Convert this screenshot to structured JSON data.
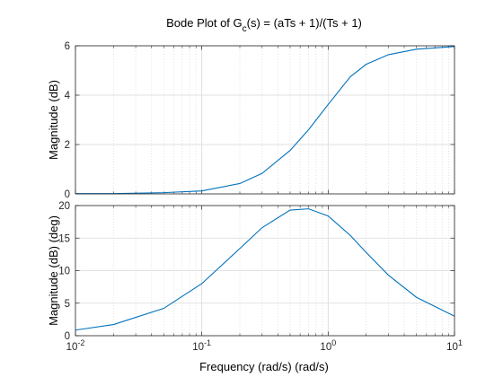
{
  "title": {
    "main": "Bode Plot of G",
    "sub": "c",
    "rest": "(s) = (aTs + 1)/(Ts + 1)"
  },
  "xlabel": "Frequency (rad/s)  (rad/s)",
  "colors": {
    "line": "#0072BD",
    "axes": "#262626",
    "grid": "#d9d9d9",
    "minorGrid": "#e3e3e3"
  },
  "chart_data": [
    {
      "type": "line",
      "name": "magnitude",
      "xscale": "log",
      "xlim": [
        0.01,
        10
      ],
      "ylim": [
        0,
        6
      ],
      "yticks": [
        0,
        2,
        4,
        6
      ],
      "ylabel": "Magnitude (dB)",
      "grid": true,
      "x": [
        0.01,
        0.02,
        0.05,
        0.1,
        0.2,
        0.3,
        0.5,
        0.7,
        1,
        1.5,
        2,
        3,
        5,
        10
      ],
      "y": [
        0.01,
        0.01,
        0.05,
        0.12,
        0.42,
        0.83,
        1.76,
        2.6,
        3.62,
        4.75,
        5.25,
        5.64,
        5.86,
        5.97
      ]
    },
    {
      "type": "line",
      "name": "phase",
      "xscale": "log",
      "xlim": [
        0.01,
        10
      ],
      "ylim": [
        0,
        20
      ],
      "yticks": [
        0,
        5,
        10,
        15,
        20
      ],
      "ylabel": "Magnitude (dB) (deg)",
      "grid": true,
      "x": [
        0.01,
        0.02,
        0.05,
        0.1,
        0.2,
        0.3,
        0.5,
        0.7,
        1,
        1.5,
        2,
        3,
        5,
        10
      ],
      "y": [
        0.86,
        1.71,
        4.2,
        8.0,
        13.4,
        16.6,
        19.3,
        19.5,
        18.4,
        15.4,
        12.8,
        9.3,
        5.9,
        3.0
      ]
    }
  ],
  "xticks": [
    {
      "value": 0.01,
      "base": "10",
      "exp": "-2"
    },
    {
      "value": 0.1,
      "base": "10",
      "exp": "-1"
    },
    {
      "value": 1,
      "base": "10",
      "exp": "0"
    },
    {
      "value": 10,
      "base": "10",
      "exp": "1"
    }
  ]
}
